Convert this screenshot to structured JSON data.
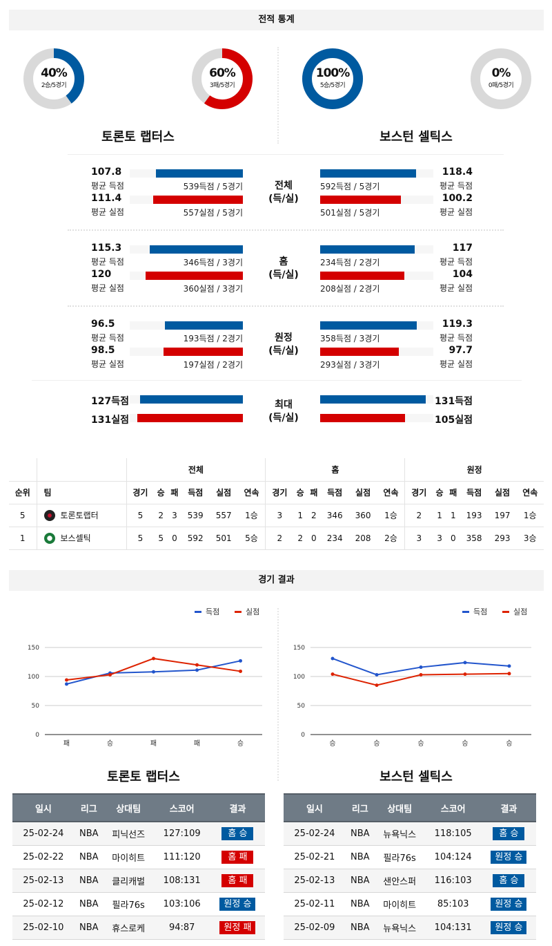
{
  "colors": {
    "score": "#005aa0",
    "allowed": "#d40000",
    "track": "#d9d9d9",
    "line_score": "#2255cc",
    "line_allowed": "#dd2200"
  },
  "section1_title": "전적 통계",
  "teams": [
    {
      "name": "토론토 랩터스",
      "win_pct": "40%",
      "win_sub": "2승/5경기",
      "win_frac": 0.4,
      "loss_pct": "60%",
      "loss_sub": "3패/5경기",
      "loss_frac": 0.6
    },
    {
      "name": "보스턴 셀틱스",
      "win_pct": "100%",
      "win_sub": "5승/5경기",
      "win_frac": 1.0,
      "loss_pct": "0%",
      "loss_sub": "0패/5경기",
      "loss_frac": 0
    }
  ],
  "comparisons": [
    {
      "label": "전체",
      "sub": "(득/실)",
      "left": {
        "for": "107.8",
        "for_cap": "539득점 / 5경기",
        "against": "111.4",
        "against_cap": "557실점 / 5경기"
      },
      "right": {
        "for": "118.4",
        "for_cap": "592득점 / 5경기",
        "against": "100.2",
        "against_cap": "501실점 / 5경기"
      }
    },
    {
      "label": "홈",
      "sub": "(득/실)",
      "left": {
        "for": "115.3",
        "for_cap": "346득점 / 3경기",
        "against": "120",
        "against_cap": "360실점 / 3경기"
      },
      "right": {
        "for": "117",
        "for_cap": "234득점 / 2경기",
        "against": "104",
        "against_cap": "208실점 / 2경기"
      }
    },
    {
      "label": "원정",
      "sub": "(득/실)",
      "left": {
        "for": "96.5",
        "for_cap": "193득점 / 2경기",
        "against": "98.5",
        "against_cap": "197실점 / 2경기"
      },
      "right": {
        "for": "119.3",
        "for_cap": "358득점 / 3경기",
        "against": "97.7",
        "against_cap": "293실점 / 3경기"
      }
    }
  ],
  "avg_for_label": "평균 득점",
  "avg_against_label": "평균 실점",
  "max": {
    "label": "최대",
    "sub": "(득/실)",
    "left": {
      "for": "127득점",
      "for_v": 127,
      "against": "131실점",
      "against_v": 131
    },
    "right": {
      "for": "131득점",
      "for_v": 131,
      "against": "105실점",
      "against_v": 105
    }
  },
  "standings": {
    "groups": [
      "전체",
      "홈",
      "원정"
    ],
    "headers": [
      "순위",
      "팀"
    ],
    "sub_headers": [
      "경기",
      "승",
      "패",
      "득점",
      "실점",
      "연속"
    ],
    "rows": [
      {
        "rank": "5",
        "team": "토론토랩터",
        "logo": "raptors-logo",
        "cells": [
          "5",
          "2",
          "3",
          "539",
          "557",
          "1승",
          "3",
          "1",
          "2",
          "346",
          "360",
          "1승",
          "2",
          "1",
          "1",
          "193",
          "197",
          "1승"
        ]
      },
      {
        "rank": "1",
        "team": "보스셀틱",
        "logo": "celtics-logo",
        "cells": [
          "5",
          "5",
          "0",
          "592",
          "501",
          "5승",
          "2",
          "2",
          "0",
          "234",
          "208",
          "2승",
          "3",
          "3",
          "0",
          "358",
          "293",
          "3승"
        ]
      }
    ]
  },
  "section2_title": "경기 결과",
  "chart_data": [
    {
      "type": "line",
      "categories": [
        "패",
        "승",
        "패",
        "패",
        "승"
      ],
      "ylim": [
        0,
        150
      ],
      "yticks": [
        0,
        50,
        100,
        150
      ],
      "legend": "top-right",
      "grid": true,
      "series": [
        {
          "name": "득점",
          "values": [
            87,
            106,
            108,
            111,
            127
          ]
        },
        {
          "name": "실점",
          "values": [
            94,
            103,
            131,
            120,
            109
          ]
        }
      ]
    },
    {
      "type": "line",
      "categories": [
        "승",
        "승",
        "승",
        "승",
        "승"
      ],
      "ylim": [
        0,
        150
      ],
      "yticks": [
        0,
        50,
        100,
        150
      ],
      "legend": "top-right",
      "grid": true,
      "series": [
        {
          "name": "득점",
          "values": [
            131,
            103,
            116,
            124,
            118
          ]
        },
        {
          "name": "실점",
          "values": [
            104,
            85,
            103,
            104,
            105
          ]
        }
      ]
    }
  ],
  "games_headers": [
    "일시",
    "리그",
    "상대팀",
    "스코어",
    "결과"
  ],
  "games": [
    [
      {
        "date": "25-02-24",
        "league": "NBA",
        "opp": "피닉선즈",
        "score": "127:109",
        "result": "홈 승",
        "win": true
      },
      {
        "date": "25-02-22",
        "league": "NBA",
        "opp": "마이히트",
        "score": "111:120",
        "result": "홈 패",
        "win": false
      },
      {
        "date": "25-02-13",
        "league": "NBA",
        "opp": "클리캐벌",
        "score": "108:131",
        "result": "홈 패",
        "win": false
      },
      {
        "date": "25-02-12",
        "league": "NBA",
        "opp": "필라76s",
        "score": "103:106",
        "result": "원정 승",
        "win": true
      },
      {
        "date": "25-02-10",
        "league": "NBA",
        "opp": "휴스로케",
        "score": "94:87",
        "result": "원정 패",
        "win": false
      }
    ],
    [
      {
        "date": "25-02-24",
        "league": "NBA",
        "opp": "뉴욕닉스",
        "score": "118:105",
        "result": "홈 승",
        "win": true
      },
      {
        "date": "25-02-21",
        "league": "NBA",
        "opp": "필라76s",
        "score": "104:124",
        "result": "원정 승",
        "win": true
      },
      {
        "date": "25-02-13",
        "league": "NBA",
        "opp": "샌안스퍼",
        "score": "116:103",
        "result": "홈 승",
        "win": true
      },
      {
        "date": "25-02-11",
        "league": "NBA",
        "opp": "마이히트",
        "score": "85:103",
        "result": "원정 승",
        "win": true
      },
      {
        "date": "25-02-09",
        "league": "NBA",
        "opp": "뉴욕닉스",
        "score": "104:131",
        "result": "원정 승",
        "win": true
      }
    ]
  ]
}
